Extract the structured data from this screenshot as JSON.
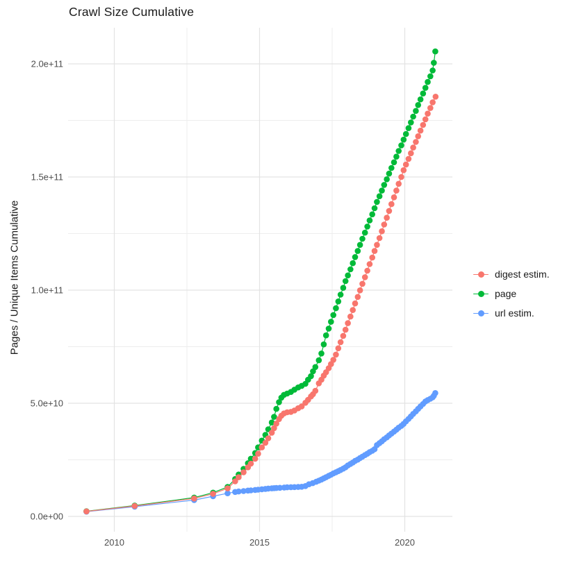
{
  "title": "Crawl Size Cumulative",
  "y_axis_title": "Pages / Unique Items Cumulative",
  "colors": {
    "digest": "#F8766D",
    "page": "#00BA38",
    "url": "#619CFF",
    "grid_major": "#E3E3E3",
    "grid_minor": "#EDEDED",
    "tick_text": "#4d4d4d",
    "title_text": "#1a1a1a",
    "background": "#ffffff"
  },
  "legend": {
    "position": "right",
    "items": [
      {
        "id": "digest",
        "label": "digest estim.",
        "color": "#F8766D"
      },
      {
        "id": "page",
        "label": "page",
        "color": "#00BA38"
      },
      {
        "id": "url",
        "label": "url estim.",
        "color": "#619CFF"
      }
    ]
  },
  "chart_data": {
    "type": "line",
    "title": "Crawl Size Cumulative",
    "xlabel": "",
    "ylabel": "Pages / Unique Items Cumulative",
    "grid": true,
    "legend_position": "right",
    "values_unit": "billions (1e9) of pages / unique items",
    "xlim": [
      2008.6,
      2021.8
    ],
    "ylim_e9": [
      -7,
      216
    ],
    "x_ticks": {
      "major": [
        2010,
        2015,
        2020
      ],
      "major_labels": [
        "2010",
        "2015",
        "2020"
      ],
      "minor": [
        2012.5,
        2017.5
      ]
    },
    "y_ticks": {
      "major_e9": [
        0,
        50,
        100,
        150,
        200
      ],
      "major_labels": [
        "0.0e+00",
        "5.0e+10",
        "1.0e+11",
        "1.5e+11",
        "2.0e+11"
      ],
      "minor_e9": [
        25,
        75,
        125,
        175
      ]
    },
    "series": [
      {
        "id": "url",
        "name": "url estim.",
        "color": "#619CFF",
        "points": [
          [
            2009.04,
            2.1
          ],
          [
            2010.7,
            4.3
          ],
          [
            2012.75,
            7.2
          ],
          [
            2013.4,
            8.9
          ],
          [
            2013.9,
            10.2
          ],
          [
            2014.16,
            10.8
          ],
          [
            2014.28,
            11.0
          ],
          [
            2014.45,
            11.2
          ],
          [
            2014.6,
            11.4
          ],
          [
            2014.7,
            11.5
          ],
          [
            2014.85,
            11.7
          ],
          [
            2014.95,
            11.8
          ],
          [
            2015.08,
            12.0
          ],
          [
            2015.2,
            12.15
          ],
          [
            2015.3,
            12.3
          ],
          [
            2015.42,
            12.4
          ],
          [
            2015.5,
            12.5
          ],
          [
            2015.58,
            12.55
          ],
          [
            2015.7,
            12.65
          ],
          [
            2015.85,
            12.75
          ],
          [
            2015.95,
            12.85
          ],
          [
            2016.08,
            12.9
          ],
          [
            2016.2,
            12.95
          ],
          [
            2016.33,
            13.0
          ],
          [
            2016.45,
            13.1
          ],
          [
            2016.58,
            13.4
          ],
          [
            2016.7,
            14.2
          ],
          [
            2016.83,
            14.7
          ],
          [
            2016.95,
            15.3
          ],
          [
            2017.04,
            15.8
          ],
          [
            2017.13,
            16.3
          ],
          [
            2017.21,
            16.8
          ],
          [
            2017.29,
            17.3
          ],
          [
            2017.38,
            17.9
          ],
          [
            2017.46,
            18.4
          ],
          [
            2017.54,
            19.0
          ],
          [
            2017.63,
            19.5
          ],
          [
            2017.71,
            20.0
          ],
          [
            2017.79,
            20.5
          ],
          [
            2017.88,
            21.1
          ],
          [
            2017.96,
            21.7
          ],
          [
            2018.04,
            22.5
          ],
          [
            2018.13,
            23.2
          ],
          [
            2018.21,
            23.8
          ],
          [
            2018.29,
            24.5
          ],
          [
            2018.38,
            25.1
          ],
          [
            2018.46,
            25.8
          ],
          [
            2018.54,
            26.4
          ],
          [
            2018.63,
            27.1
          ],
          [
            2018.71,
            27.7
          ],
          [
            2018.79,
            28.4
          ],
          [
            2018.88,
            29.0
          ],
          [
            2018.96,
            29.7
          ],
          [
            2019.04,
            31.5
          ],
          [
            2019.13,
            32.4
          ],
          [
            2019.21,
            33.2
          ],
          [
            2019.29,
            34.1
          ],
          [
            2019.38,
            34.9
          ],
          [
            2019.46,
            35.8
          ],
          [
            2019.54,
            36.6
          ],
          [
            2019.63,
            37.5
          ],
          [
            2019.71,
            38.3
          ],
          [
            2019.79,
            39.2
          ],
          [
            2019.88,
            40.0
          ],
          [
            2019.96,
            40.9
          ],
          [
            2020.04,
            42.0
          ],
          [
            2020.13,
            43.1
          ],
          [
            2020.21,
            44.2
          ],
          [
            2020.29,
            45.3
          ],
          [
            2020.38,
            46.4
          ],
          [
            2020.46,
            47.5
          ],
          [
            2020.54,
            48.6
          ],
          [
            2020.63,
            49.7
          ],
          [
            2020.71,
            50.8
          ],
          [
            2020.79,
            51.4
          ],
          [
            2020.88,
            52.0
          ],
          [
            2020.96,
            52.6
          ],
          [
            2021.0,
            53.3
          ],
          [
            2021.05,
            54.5
          ]
        ]
      },
      {
        "id": "page",
        "name": "page",
        "color": "#00BA38",
        "points": [
          [
            2009.04,
            2.3
          ],
          [
            2010.7,
            4.8
          ],
          [
            2012.75,
            8.3
          ],
          [
            2013.4,
            10.5
          ],
          [
            2013.9,
            13.0
          ],
          [
            2014.16,
            16.5
          ],
          [
            2014.28,
            18.5
          ],
          [
            2014.45,
            21.0
          ],
          [
            2014.6,
            23.5
          ],
          [
            2014.7,
            25.5
          ],
          [
            2014.85,
            28.0
          ],
          [
            2014.95,
            30.5
          ],
          [
            2015.08,
            33.5
          ],
          [
            2015.2,
            36.0
          ],
          [
            2015.3,
            38.5
          ],
          [
            2015.42,
            41.5
          ],
          [
            2015.5,
            44.0
          ],
          [
            2015.58,
            47.5
          ],
          [
            2015.67,
            50.5
          ],
          [
            2015.75,
            52.5
          ],
          [
            2015.84,
            53.7
          ],
          [
            2015.95,
            54.3
          ],
          [
            2016.08,
            55.0
          ],
          [
            2016.2,
            56.0
          ],
          [
            2016.33,
            57.0
          ],
          [
            2016.45,
            57.7
          ],
          [
            2016.58,
            58.6
          ],
          [
            2016.67,
            60.4
          ],
          [
            2016.77,
            62.0
          ],
          [
            2016.84,
            64.1
          ],
          [
            2016.92,
            66.0
          ],
          [
            2017.04,
            69.0
          ],
          [
            2017.13,
            72.0
          ],
          [
            2017.21,
            76.0
          ],
          [
            2017.29,
            80.0
          ],
          [
            2017.38,
            83.0
          ],
          [
            2017.46,
            86.0
          ],
          [
            2017.54,
            89.0
          ],
          [
            2017.63,
            92.0
          ],
          [
            2017.71,
            95.0
          ],
          [
            2017.79,
            98.0
          ],
          [
            2017.88,
            101.0
          ],
          [
            2017.96,
            104.0
          ],
          [
            2018.04,
            106.5
          ],
          [
            2018.13,
            109.2
          ],
          [
            2018.21,
            111.9
          ],
          [
            2018.29,
            114.6
          ],
          [
            2018.38,
            117.3
          ],
          [
            2018.46,
            120.0
          ],
          [
            2018.54,
            122.7
          ],
          [
            2018.63,
            125.4
          ],
          [
            2018.71,
            128.1
          ],
          [
            2018.79,
            130.8
          ],
          [
            2018.88,
            133.5
          ],
          [
            2018.96,
            136.2
          ],
          [
            2019.04,
            139.0
          ],
          [
            2019.13,
            141.5
          ],
          [
            2019.21,
            144.0
          ],
          [
            2019.29,
            146.5
          ],
          [
            2019.38,
            149.0
          ],
          [
            2019.46,
            151.5
          ],
          [
            2019.54,
            154.0
          ],
          [
            2019.63,
            156.5
          ],
          [
            2019.71,
            159.0
          ],
          [
            2019.79,
            161.5
          ],
          [
            2019.88,
            164.0
          ],
          [
            2019.96,
            166.5
          ],
          [
            2020.04,
            169.0
          ],
          [
            2020.13,
            171.6
          ],
          [
            2020.21,
            174.1
          ],
          [
            2020.29,
            176.7
          ],
          [
            2020.38,
            179.2
          ],
          [
            2020.46,
            181.8
          ],
          [
            2020.54,
            184.3
          ],
          [
            2020.63,
            186.9
          ],
          [
            2020.71,
            189.4
          ],
          [
            2020.79,
            192.0
          ],
          [
            2020.88,
            194.5
          ],
          [
            2020.96,
            197.1
          ],
          [
            2021.0,
            200.5
          ],
          [
            2021.05,
            205.5
          ]
        ]
      },
      {
        "id": "digest",
        "name": "digest estim.",
        "color": "#F8766D",
        "points": [
          [
            2009.04,
            2.2
          ],
          [
            2010.7,
            4.6
          ],
          [
            2012.75,
            7.9
          ],
          [
            2013.4,
            10.0
          ],
          [
            2013.9,
            12.4
          ],
          [
            2014.16,
            15.5
          ],
          [
            2014.28,
            17.3
          ],
          [
            2014.45,
            19.5
          ],
          [
            2014.6,
            21.7
          ],
          [
            2014.7,
            23.3
          ],
          [
            2014.85,
            25.5
          ],
          [
            2014.95,
            27.7
          ],
          [
            2015.08,
            30.5
          ],
          [
            2015.2,
            32.5
          ],
          [
            2015.3,
            34.5
          ],
          [
            2015.42,
            37.0
          ],
          [
            2015.5,
            39.0
          ],
          [
            2015.58,
            41.0
          ],
          [
            2015.67,
            43.0
          ],
          [
            2015.75,
            44.5
          ],
          [
            2015.84,
            45.5
          ],
          [
            2015.95,
            46.0
          ],
          [
            2016.08,
            46.2
          ],
          [
            2016.2,
            46.8
          ],
          [
            2016.33,
            47.8
          ],
          [
            2016.45,
            48.6
          ],
          [
            2016.58,
            50.2
          ],
          [
            2016.67,
            51.5
          ],
          [
            2016.77,
            53.0
          ],
          [
            2016.84,
            54.0
          ],
          [
            2016.92,
            55.5
          ],
          [
            2017.04,
            58.8
          ],
          [
            2017.13,
            60.4
          ],
          [
            2017.21,
            62.2
          ],
          [
            2017.29,
            63.7
          ],
          [
            2017.38,
            65.5
          ],
          [
            2017.46,
            67.3
          ],
          [
            2017.54,
            69.2
          ],
          [
            2017.63,
            71.5
          ],
          [
            2017.71,
            74.3
          ],
          [
            2017.79,
            77.0
          ],
          [
            2017.88,
            79.8
          ],
          [
            2017.96,
            82.5
          ],
          [
            2018.04,
            85.4
          ],
          [
            2018.13,
            88.3
          ],
          [
            2018.21,
            91.2
          ],
          [
            2018.29,
            94.1
          ],
          [
            2018.38,
            97.0
          ],
          [
            2018.46,
            99.9
          ],
          [
            2018.54,
            102.8
          ],
          [
            2018.63,
            105.7
          ],
          [
            2018.71,
            108.6
          ],
          [
            2018.79,
            111.5
          ],
          [
            2018.88,
            114.4
          ],
          [
            2018.96,
            117.3
          ],
          [
            2019.04,
            120.0
          ],
          [
            2019.13,
            123.0
          ],
          [
            2019.21,
            126.0
          ],
          [
            2019.29,
            129.0
          ],
          [
            2019.38,
            132.0
          ],
          [
            2019.46,
            135.0
          ],
          [
            2019.54,
            138.0
          ],
          [
            2019.63,
            141.0
          ],
          [
            2019.71,
            144.0
          ],
          [
            2019.79,
            147.0
          ],
          [
            2019.88,
            150.0
          ],
          [
            2019.96,
            153.0
          ],
          [
            2020.04,
            155.5
          ],
          [
            2020.13,
            158.0
          ],
          [
            2020.21,
            160.5
          ],
          [
            2020.29,
            163.0
          ],
          [
            2020.38,
            165.5
          ],
          [
            2020.46,
            168.0
          ],
          [
            2020.54,
            170.5
          ],
          [
            2020.63,
            173.0
          ],
          [
            2020.71,
            175.5
          ],
          [
            2020.79,
            178.0
          ],
          [
            2020.88,
            180.5
          ],
          [
            2020.96,
            183.0
          ],
          [
            2021.06,
            185.5
          ]
        ]
      }
    ]
  }
}
